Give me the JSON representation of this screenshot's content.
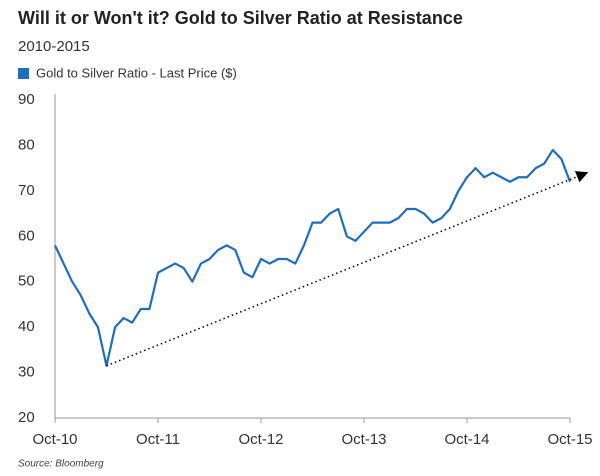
{
  "chart_data": {
    "type": "line",
    "title": "Will it or Won't it? Gold to Silver Ratio at Resistance",
    "subtitle": "2010-2015",
    "source": "Source: Bloomberg",
    "x": [
      "2010-10",
      "2010-11",
      "2010-12",
      "2011-01",
      "2011-02",
      "2011-03",
      "2011-04",
      "2011-05",
      "2011-06",
      "2011-07",
      "2011-08",
      "2011-09",
      "2011-10",
      "2011-11",
      "2011-12",
      "2012-01",
      "2012-02",
      "2012-03",
      "2012-04",
      "2012-05",
      "2012-06",
      "2012-07",
      "2012-08",
      "2012-09",
      "2012-10",
      "2012-11",
      "2012-12",
      "2013-01",
      "2013-02",
      "2013-03",
      "2013-04",
      "2013-05",
      "2013-06",
      "2013-07",
      "2013-08",
      "2013-09",
      "2013-10",
      "2013-11",
      "2013-12",
      "2014-01",
      "2014-02",
      "2014-03",
      "2014-04",
      "2014-05",
      "2014-06",
      "2014-07",
      "2014-08",
      "2014-09",
      "2014-10",
      "2014-11",
      "2014-12",
      "2015-01",
      "2015-02",
      "2015-03",
      "2015-04",
      "2015-05",
      "2015-06",
      "2015-07",
      "2015-08",
      "2015-09",
      "2015-10"
    ],
    "series": [
      {
        "name": "Gold to Silver Ratio - Last Price ($)",
        "color": "#1f6dbd",
        "values": [
          58,
          54,
          50,
          47,
          43,
          40,
          31.5,
          40,
          42,
          41,
          44,
          44,
          52,
          53,
          54,
          53,
          50,
          54,
          55,
          57,
          58,
          57,
          52,
          51,
          55,
          54,
          55,
          55,
          54,
          58,
          63,
          63,
          65,
          66,
          60,
          59,
          61,
          63,
          63,
          63,
          64,
          66,
          66,
          65,
          63,
          64,
          66,
          70,
          73,
          75,
          73,
          74,
          73,
          72,
          73,
          73,
          75,
          76,
          79,
          77,
          72
        ]
      }
    ],
    "trendline": {
      "x": [
        "2011-04",
        "2015-12"
      ],
      "values": [
        31.5,
        74
      ],
      "color": "#000000"
    },
    "xlim": [
      "2010-10",
      "2015-10"
    ],
    "xticks": [
      {
        "value": "2010-10",
        "label": "Oct-10"
      },
      {
        "value": "2011-10",
        "label": "Oct-11"
      },
      {
        "value": "2012-10",
        "label": "Oct-12"
      },
      {
        "value": "2013-10",
        "label": "Oct-13"
      },
      {
        "value": "2014-10",
        "label": "Oct-14"
      },
      {
        "value": "2015-10",
        "label": "Oct-15"
      }
    ],
    "ylim": [
      20,
      90
    ],
    "yticks": [
      20,
      30,
      40,
      50,
      60,
      70,
      80,
      90
    ],
    "grid": false
  }
}
